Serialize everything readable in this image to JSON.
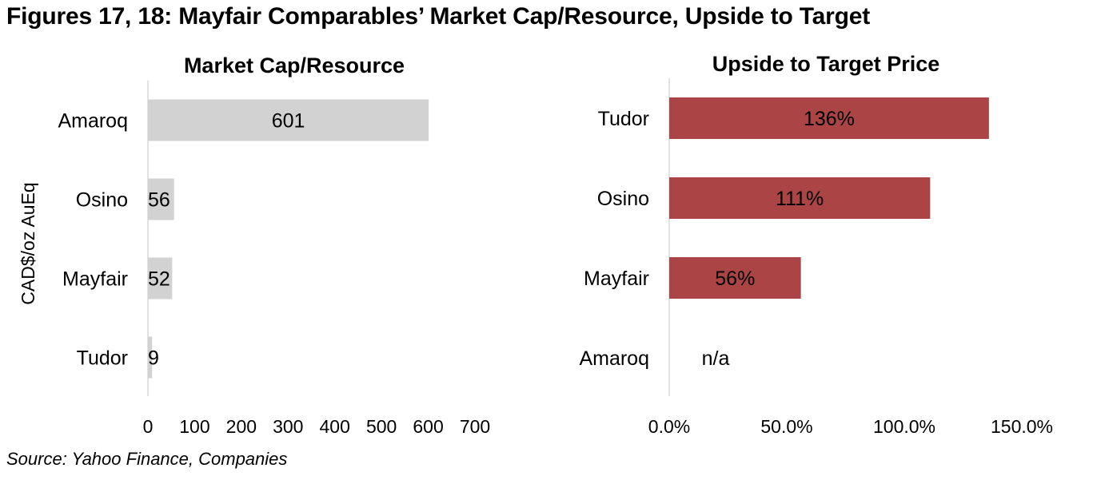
{
  "figure_title": "Figures 17, 18: Mayfair Comparables’ Market Cap/Resource, Upside to Target",
  "source": "Source: Yahoo Finance, Companies",
  "chart_data": [
    {
      "type": "bar",
      "orientation": "horizontal",
      "title": "Market Cap/Resource",
      "xlabel": "",
      "ylabel": "CAD$/oz AuEq",
      "categories": [
        "Amaroq",
        "Osino",
        "Mayfair",
        "Tudor"
      ],
      "values": [
        601,
        56,
        52,
        9
      ],
      "data_labels": [
        "601",
        "56",
        "52",
        "9"
      ],
      "xlim": [
        0,
        700
      ],
      "ticks": [
        0,
        100,
        200,
        300,
        400,
        500,
        600,
        700
      ],
      "tick_labels": [
        "0",
        "100",
        "200",
        "300",
        "400",
        "500",
        "600",
        "700"
      ],
      "bar_color": "#d3d2d3",
      "grid": false
    },
    {
      "type": "bar",
      "orientation": "horizontal",
      "title": "Upside to Target Price",
      "xlabel": "",
      "ylabel": "",
      "categories": [
        "Tudor",
        "Osino",
        "Mayfair",
        "Amaroq"
      ],
      "values": [
        136,
        111,
        56,
        null
      ],
      "data_labels": [
        "136%",
        "111%",
        "56%",
        "n/a"
      ],
      "xlim": [
        0,
        150
      ],
      "ticks": [
        0,
        50,
        100,
        150
      ],
      "tick_labels": [
        "0.0%",
        "50.0%",
        "100.0%",
        "150.0%"
      ],
      "bar_color": "#ab4545",
      "grid": false
    }
  ]
}
